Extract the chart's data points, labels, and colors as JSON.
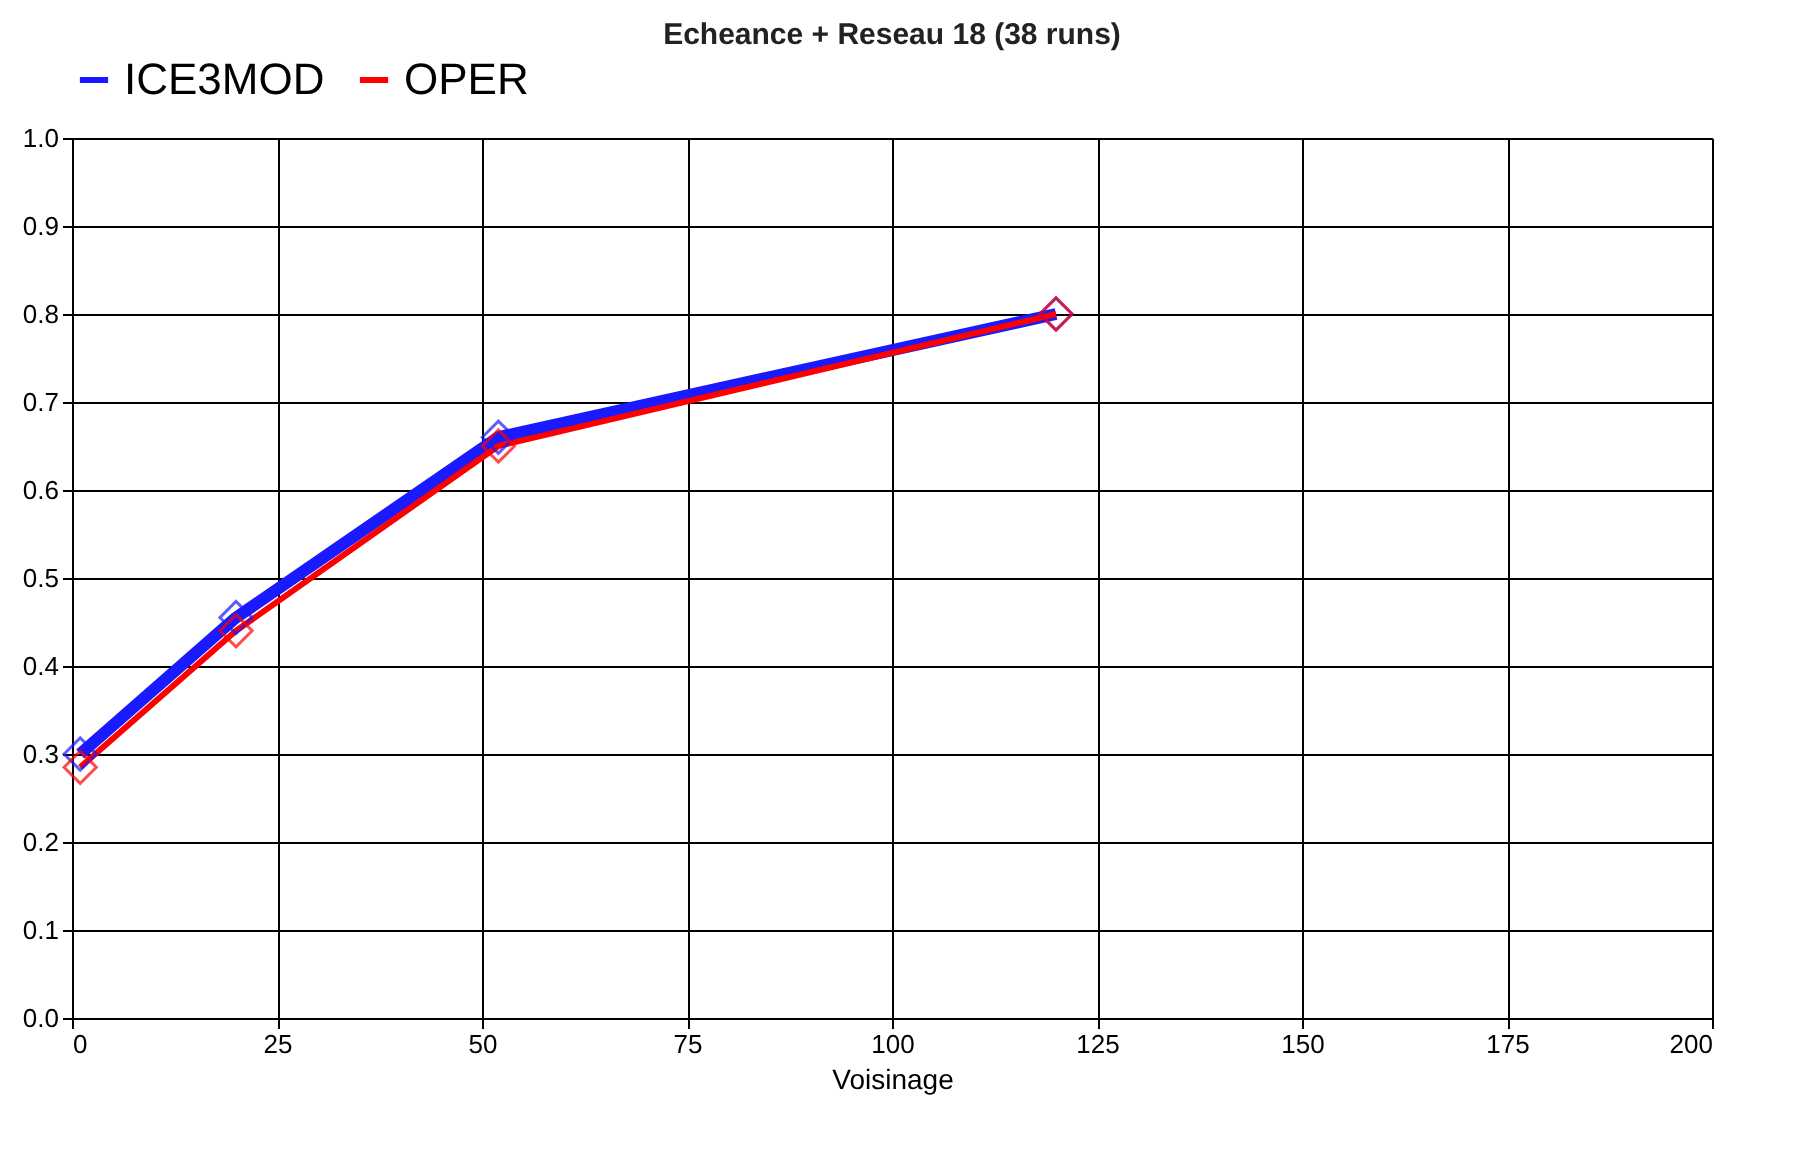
{
  "chart_data": {
    "type": "line",
    "title": "Echeance + Reseau 18   (38 runs)",
    "xlabel": "Voisinage",
    "x": [
      1,
      20,
      52,
      120
    ],
    "series": [
      {
        "name": "ICE3MOD",
        "color": "#1a1aff",
        "values": [
          0.3,
          0.455,
          0.66,
          0.8
        ]
      },
      {
        "name": "OPER",
        "color": "#ff0000",
        "values": [
          0.285,
          0.44,
          0.65,
          0.8
        ]
      }
    ],
    "xlim": [
      0,
      200
    ],
    "xticks": [
      0,
      25,
      50,
      75,
      100,
      125,
      150,
      175,
      200
    ],
    "ylim": [
      0,
      1
    ],
    "yticks": [
      {
        "value": 0,
        "label": "0.0"
      },
      0.1,
      0.2,
      0.3,
      0.4,
      0.5,
      0.6,
      0.7,
      0.8,
      0.9,
      {
        "value": 1,
        "label": "1.0"
      }
    ],
    "grid": true,
    "legend": "top",
    "marker": "diamond",
    "line_style": "solid"
  }
}
